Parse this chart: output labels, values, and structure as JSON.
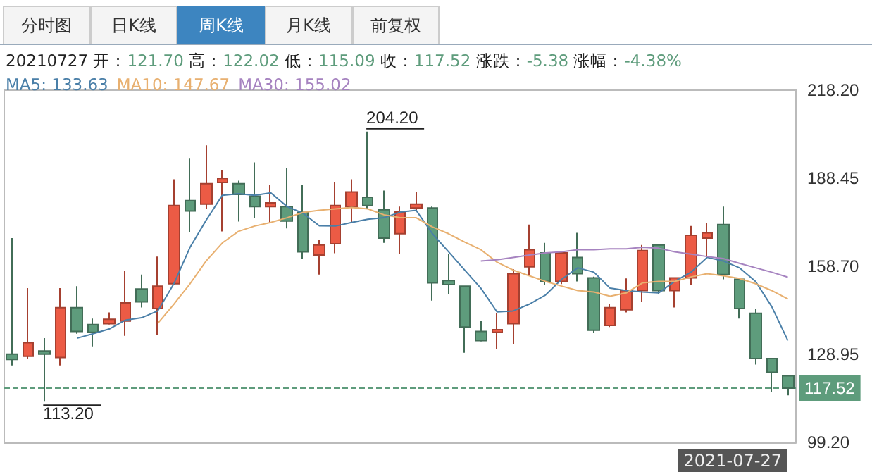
{
  "chart_data": {
    "type": "candlestick",
    "subtitle": "20210727 开：121.70 高：122.02 低：115.09 收：117.52 涨跌：-5.38 涨幅：-4.38%",
    "annotations": [
      "分时图",
      "日K线",
      "周K线",
      "月K线",
      "前复权",
      "2021-07-27",
      "204.20",
      "113.20"
    ],
    "categories": [
      null,
      null,
      null,
      null,
      null,
      null,
      null,
      null,
      null,
      null,
      null,
      null,
      null,
      null,
      null,
      null,
      null,
      null,
      null,
      null,
      null,
      null,
      null,
      null,
      null,
      null,
      null,
      null,
      null,
      null,
      null,
      null,
      null,
      null,
      null,
      null,
      null,
      null,
      null,
      null,
      null,
      null,
      null,
      null,
      null,
      null,
      null,
      null,
      null
    ],
    "colors": [
      "#5e9c7c",
      "#ec5b45",
      "#5e9c7c",
      "#ec5b45",
      "#5e9c7c",
      "#5e9c7c",
      "#ec5b45",
      "#ec5b45",
      "#5e9c7c",
      "#ec5b45",
      "#ec5b45",
      "#5e9c7c",
      "#ec5b45",
      "#ec5b45",
      "#5e9c7c",
      "#5e9c7c",
      "#ec5b45",
      "#5e9c7c",
      "#5e9c7c",
      "#ec5b45",
      "#ec5b45",
      "#ec5b45",
      "#5e9c7c",
      "#5e9c7c",
      "#ec5b45",
      "#ec5b45",
      "#5e9c7c",
      "#5e9c7c",
      "#5e9c7c",
      "#5e9c7c",
      "#ec5b45",
      "#ec5b45",
      "#ec5b45",
      "#5e9c7c",
      "#ec5b45",
      "#5e9c7c",
      "#5e9c7c",
      "#ec5b45",
      "#ec5b45",
      "#ec5b45",
      "#5e9c7c",
      "#ec5b45",
      "#ec5b45",
      "#ec5b45",
      "#5e9c7c",
      "#5e9c7c",
      "#5e9c7c",
      "#5e9c7c",
      "#5e9c7c"
    ],
    "ohlc": [
      [
        129.0,
        168.2,
        125.2,
        127.2
      ],
      [
        128.3,
        151.3,
        127.5,
        132.9
      ],
      [
        130.1,
        134.4,
        113.2,
        129.0
      ],
      [
        127.9,
        151.3,
        125.2,
        144.7
      ],
      [
        144.7,
        152.0,
        135.9,
        136.7
      ],
      [
        139.0,
        141.0,
        131.6,
        136.4
      ],
      [
        139.3,
        143.1,
        139.0,
        140.8
      ],
      [
        140.2,
        157.1,
        135.2,
        146.3
      ],
      [
        151.0,
        155.9,
        144.8,
        146.7
      ],
      [
        144.4,
        162.0,
        135.6,
        152.0
      ],
      [
        152.8,
        188.1,
        152.5,
        179.2
      ],
      [
        180.9,
        195.3,
        170.1,
        177.4
      ],
      [
        179.7,
        199.6,
        178.1,
        186.6
      ],
      [
        187.0,
        191.2,
        170.5,
        188.4
      ],
      [
        186.6,
        187.6,
        173.8,
        183.0
      ],
      [
        182.4,
        193.8,
        175.1,
        178.9
      ],
      [
        178.9,
        186.1,
        173.5,
        180.1
      ],
      [
        178.9,
        191.9,
        171.5,
        174.0
      ],
      [
        176.9,
        186.1,
        161.3,
        163.6
      ],
      [
        162.5,
        167.7,
        155.9,
        165.9
      ],
      [
        166.3,
        187.0,
        163.1,
        179.2
      ],
      [
        178.9,
        188.1,
        173.5,
        183.8
      ],
      [
        182.0,
        204.2,
        178.1,
        179.2
      ],
      [
        177.8,
        184.3,
        166.6,
        168.2
      ],
      [
        169.7,
        178.9,
        162.8,
        177.0
      ],
      [
        178.4,
        183.8,
        177.4,
        179.7
      ],
      [
        178.4,
        178.9,
        147.1,
        153.1
      ],
      [
        153.9,
        162.8,
        149.4,
        152.5
      ],
      [
        152.0,
        152.0,
        129.5,
        138.2
      ],
      [
        136.7,
        140.2,
        133.3,
        133.6
      ],
      [
        136.4,
        142.8,
        130.6,
        137.3
      ],
      [
        139.3,
        157.7,
        132.4,
        156.2
      ],
      [
        158.5,
        172.8,
        155.4,
        164.3
      ],
      [
        163.2,
        166.6,
        152.5,
        153.6
      ],
      [
        153.6,
        163.5,
        152.7,
        163.2
      ],
      [
        161.7,
        170.0,
        153.6,
        156.2
      ],
      [
        154.8,
        155.2,
        136.2,
        137.1
      ],
      [
        138.7,
        145.9,
        138.2,
        144.7
      ],
      [
        144.0,
        154.6,
        143.1,
        150.5
      ],
      [
        150.5,
        165.9,
        146.7,
        164.0
      ],
      [
        165.9,
        166.0,
        149.4,
        150.5
      ],
      [
        150.5,
        155.0,
        144.8,
        154.8
      ],
      [
        154.8,
        172.3,
        152.3,
        169.2
      ],
      [
        168.2,
        173.2,
        162.0,
        170.0
      ],
      [
        172.8,
        178.9,
        154.3,
        155.9
      ],
      [
        154.3,
        154.5,
        141.0,
        144.4
      ],
      [
        142.8,
        144.4,
        125.5,
        127.5
      ],
      [
        127.5,
        127.5,
        116.3,
        122.9
      ],
      [
        121.7,
        122.02,
        115.09,
        117.52
      ]
    ],
    "series": [
      {
        "name": "MA5: 133.63",
        "type": "line",
        "color": "#4a7fa8",
        "values": [
          null,
          null,
          null,
          null,
          134.4,
          135.9,
          137.5,
          140.5,
          141.3,
          143.6,
          152.8,
          165.1,
          174.3,
          182.7,
          183.2,
          182.7,
          183.5,
          178.9,
          176.6,
          172.4,
          172.3,
          173.5,
          174.6,
          175.1,
          177.0,
          177.6,
          169.7,
          163.6,
          157.4,
          151.3,
          143.3,
          143.6,
          145.9,
          149.0,
          154.3,
          158.2,
          156.7,
          151.3,
          150.5,
          150.0,
          149.7,
          153.6,
          156.7,
          161.7,
          160.5,
          158.2,
          153.6,
          145.1,
          133.63
        ]
      },
      {
        "name": "MA10: 147.67",
        "type": "line",
        "color": "#e8b070",
        "values": [
          null,
          null,
          null,
          null,
          null,
          null,
          null,
          null,
          null,
          139.4,
          145.9,
          152.8,
          160.5,
          166.6,
          170.5,
          172.3,
          173.5,
          175.1,
          176.9,
          177.6,
          178.1,
          178.6,
          178.1,
          176.1,
          175.1,
          175.1,
          172.0,
          169.7,
          166.9,
          164.3,
          160.1,
          157.4,
          155.5,
          153.6,
          152.0,
          150.5,
          150.0,
          148.6,
          149.7,
          153.1,
          153.6,
          153.6,
          155.1,
          156.2,
          155.5,
          154.6,
          152.8,
          150.5,
          147.67
        ]
      },
      {
        "name": "MA30: 155.02",
        "type": "line",
        "color": "#a683c0",
        "values": [
          null,
          null,
          null,
          null,
          null,
          null,
          null,
          null,
          null,
          null,
          null,
          null,
          null,
          null,
          null,
          null,
          null,
          null,
          null,
          null,
          null,
          null,
          null,
          null,
          null,
          null,
          null,
          null,
          null,
          160.5,
          160.9,
          161.7,
          162.5,
          163.2,
          163.6,
          164.3,
          164.3,
          164.6,
          164.6,
          165.1,
          164.8,
          163.6,
          162.8,
          162.0,
          161.3,
          159.7,
          158.2,
          156.7,
          155.02
        ]
      }
    ],
    "ylim": [
      99.2,
      218.2
    ],
    "yticks": [
      {
        "value": 99.2,
        "label": "99.20"
      },
      128.95,
      {
        "value": 158.7,
        "label": "158.70"
      },
      188.45,
      {
        "value": 218.2,
        "label": "218.20"
      }
    ],
    "ref_lines": [
      {
        "axis": "y",
        "value": 117.52,
        "label": "117.52",
        "color": "#5e9c7c",
        "line_style": "dashed"
      }
    ],
    "legend": "top left",
    "marker": "none",
    "grid": false
  }
}
